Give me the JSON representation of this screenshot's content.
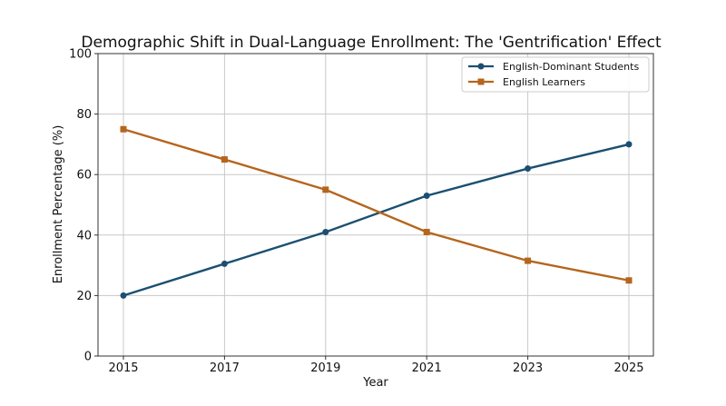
{
  "chart_data": {
    "type": "line",
    "title": "Demographic Shift in Dual-Language Enrollment: The 'Gentrification' Effect",
    "xlabel": "Year",
    "ylabel": "Enrollment Percentage (%)",
    "x": [
      2015,
      2017,
      2019,
      2021,
      2023,
      2025
    ],
    "x_ticks": [
      "2015",
      "2017",
      "2019",
      "2021",
      "2023",
      "2025"
    ],
    "ylim": [
      0,
      100
    ],
    "y_ticks": [
      "0",
      "20",
      "40",
      "60",
      "80",
      "100"
    ],
    "grid": true,
    "legend_position": "top-right",
    "series": [
      {
        "name": "English-Dominant Students",
        "values": [
          20,
          30.5,
          41,
          53,
          62,
          70
        ],
        "color": "#1b4f72",
        "marker": "circle"
      },
      {
        "name": "English Learners",
        "values": [
          75,
          65,
          55,
          41,
          31.5,
          25
        ],
        "color": "#b5651d",
        "marker": "square"
      }
    ]
  }
}
